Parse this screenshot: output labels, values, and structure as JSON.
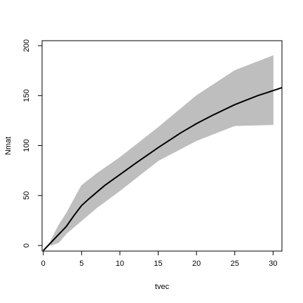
{
  "chart_data": {
    "type": "line",
    "x_label": "tvec",
    "y_label": "Nmat",
    "xlim": [
      -0.16,
      31.16
    ],
    "ylim": [
      -5.6,
      205
    ],
    "xticks": [
      0,
      5,
      10,
      15,
      20,
      25,
      30
    ],
    "yticks": [
      0,
      50,
      100,
      150,
      200
    ],
    "band": {
      "color": "#bebebe",
      "x": [
        1,
        2,
        3,
        5,
        7,
        10,
        15,
        20,
        25,
        30
      ],
      "lower": [
        0,
        3,
        12,
        25,
        38,
        55,
        85,
        105,
        120,
        121
      ],
      "upper": [
        5,
        20,
        32,
        60,
        72,
        88,
        118,
        150,
        175,
        190
      ]
    },
    "curve": {
      "color": "#000000",
      "x": [
        0,
        1,
        2,
        3,
        4,
        5,
        6,
        8,
        10,
        12,
        15,
        18,
        20,
        22,
        25,
        28,
        30,
        31.16
      ],
      "values": [
        -5,
        3,
        11,
        19,
        30,
        40,
        47,
        60,
        71,
        82,
        98,
        113,
        122,
        130,
        141,
        150,
        155,
        158
      ]
    }
  }
}
